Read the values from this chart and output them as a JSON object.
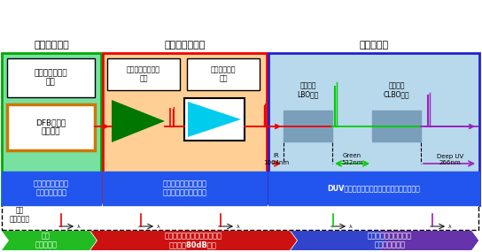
{
  "section1_title": "パルス発生部",
  "section2_title": "光パルス増幅部",
  "section3_title": "波長変換部",
  "box1a_text": "半導体レーザー\n技術",
  "box1b_text": "DFB半導体\nレーザー",
  "box1c_text": "任意のパルス発生\n（制御が容易）",
  "box2a_text": "ファイバレーザー\n技術",
  "box2b_text": "固体レーザー\n技術",
  "box2c_text": "超低ノイズ＆大増幅率\n構成・制御がシンプル",
  "box3a_text": "波長変換\nLBO結晶",
  "box3b_text": "波長変換\nCLBO結晶",
  "box3c_text": "DUVピコ秒パルスレーザーを長期間発生可能",
  "spectrum_label": "波長\nスペクトル",
  "bottom_text1": "狭帯\nスペクトル",
  "bottom_text2": "狭帯スペクトルのまま光増幅\n増幅率：80dB以上",
  "bottom_text3": "狭帯スペクトルによる\n高効率波長変換",
  "sec1_bg": "#78E0A0",
  "sec2_bg": "#FFCF95",
  "sec3_bg": "#B8D8EC",
  "sec1_border": "#00AA00",
  "sec2_border": "#EE0000",
  "sec3_border": "#2222CC",
  "dfb_border_top": "#DAA520",
  "dfb_border_bot": "#FF6600",
  "amplifier1_color": "#007700",
  "amplifier2_color": "#00CCEE",
  "crystal_color": "#7A9FBB",
  "red_color": "#EE0000",
  "green_color": "#00CC00",
  "purple_color": "#9922BB",
  "blue_label_color": "#2255EE",
  "arrow_green": "#22BB22",
  "arrow_red": "#CC1111",
  "arrow_rightblue": "#3355EE"
}
